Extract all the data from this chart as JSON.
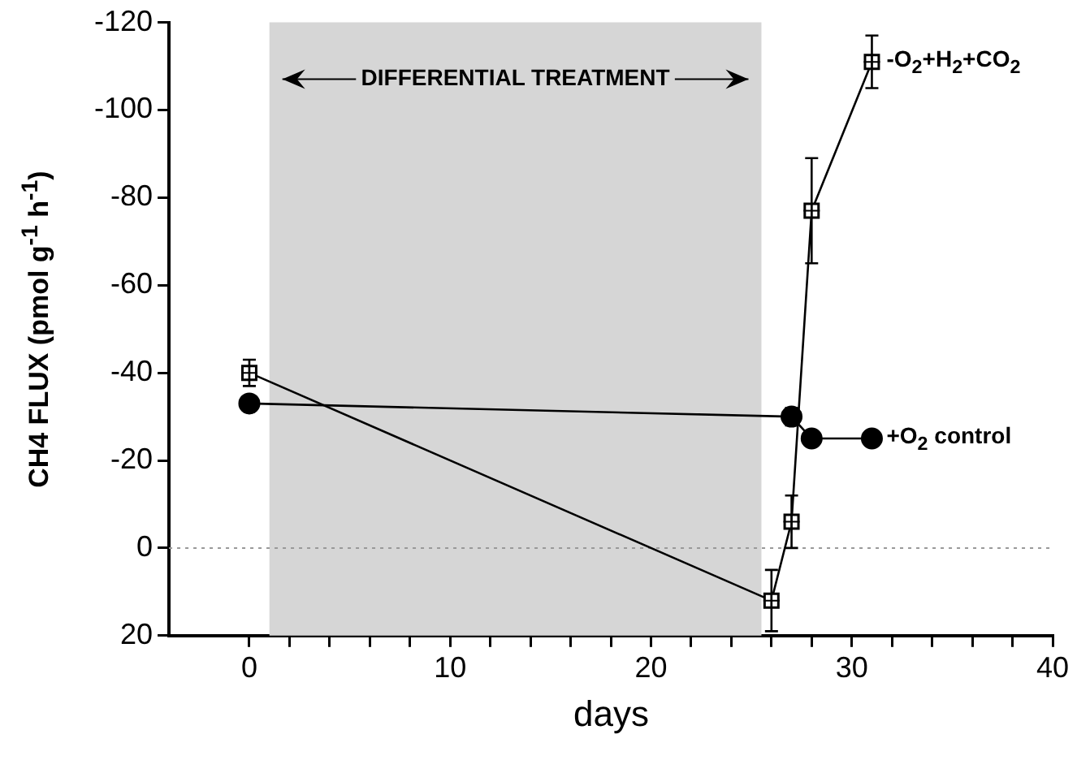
{
  "chart_data": {
    "type": "line",
    "xlabel": "days",
    "ylabel": "CH4 FLUX (pmol g$^{-1}$ h$^{-1}$)",
    "xlim": [
      -4,
      40
    ],
    "xticks": [
      0,
      {
        "value": 2,
        "label": null
      },
      {
        "value": 4,
        "label": null
      },
      {
        "value": 6,
        "label": null
      },
      {
        "value": 8,
        "label": null
      },
      10,
      {
        "value": 12,
        "label": null
      },
      {
        "value": 14,
        "label": null
      },
      {
        "value": 16,
        "label": null
      },
      {
        "value": 18,
        "label": null
      },
      20,
      {
        "value": 22,
        "label": null
      },
      {
        "value": 24,
        "label": null
      },
      {
        "value": 26,
        "label": null
      },
      {
        "value": 28,
        "label": null
      },
      30,
      {
        "value": 32,
        "label": null
      },
      {
        "value": 34,
        "label": null
      },
      {
        "value": 36,
        "label": null
      },
      {
        "value": 38,
        "label": null
      },
      40
    ],
    "ylim": [
      20,
      -120
    ],
    "yticks": [
      -120,
      -100,
      -80,
      -60,
      -40,
      -20,
      0,
      20
    ],
    "grid": false,
    "legend": false,
    "line_style": "solid",
    "series": [
      {
        "name": "-O$_{2}$+H$_{2}$+CO$_{2}$",
        "color": "#000000",
        "marker": "square",
        "x": [
          0,
          26,
          27,
          28,
          31
        ],
        "values": [
          -40,
          12,
          -6,
          -77,
          -111
        ],
        "errors": [
          3,
          7,
          6,
          12,
          6
        ]
      },
      {
        "name": "+O$_{2}$  control",
        "color": "#000000",
        "marker": "circle",
        "x": [
          0,
          27,
          28,
          31
        ],
        "values": [
          -33,
          -30,
          -25,
          -25
        ],
        "errors": [
          null,
          2,
          null,
          null
        ]
      }
    ],
    "ref_lines": [
      {
        "axis": "y",
        "value": 0,
        "color": "#999999",
        "line_style": "dotted"
      }
    ],
    "bands": [
      {
        "axis": "x",
        "from": 1,
        "to": 25.5,
        "label": "DIFFERENTIAL TREATMENT",
        "color": "#d6d6d6"
      }
    ]
  }
}
